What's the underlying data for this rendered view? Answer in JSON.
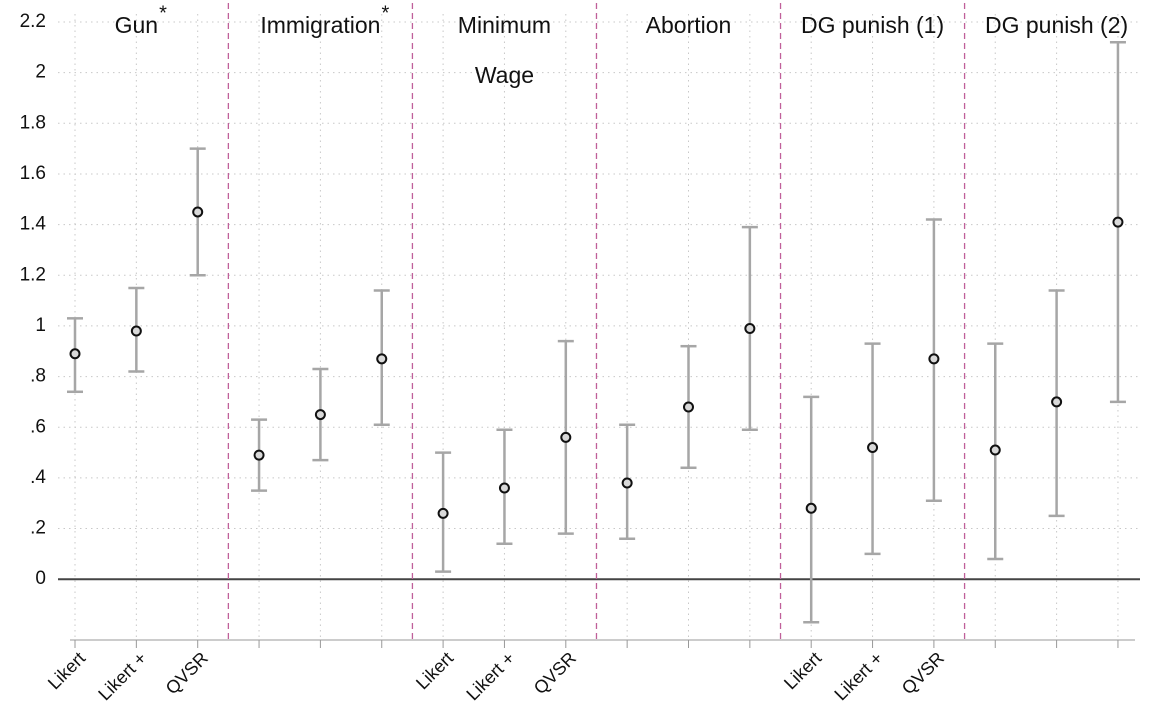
{
  "chart_data": {
    "type": "errorbar",
    "categories": [
      "Likert",
      "Likert +",
      "QVSR",
      null,
      null,
      null,
      "Likert",
      "Likert +",
      "QVSR",
      null,
      null,
      null,
      "Likert",
      "Likert +",
      "QVSR",
      null,
      null,
      null
    ],
    "groups": [
      {
        "label": [
          "Gun"
        ],
        "mark": "*"
      },
      {
        "label": [
          "Immigration"
        ],
        "mark": "*"
      },
      {
        "label": [
          "Minimum",
          "Wage"
        ]
      },
      {
        "label": [
          "Abortion"
        ]
      },
      {
        "label": [
          "DG punish (1)"
        ]
      },
      {
        "label": [
          "DG punish (2)"
        ]
      }
    ],
    "series": [
      {
        "color": "#a6a6a6",
        "values": [
          0.89,
          0.98,
          1.45,
          0.49,
          0.65,
          0.87,
          0.26,
          0.36,
          0.56,
          0.38,
          0.68,
          0.99,
          0.28,
          0.52,
          0.87,
          0.51,
          0.7,
          1.41
        ],
        "lower": [
          0.74,
          0.82,
          1.2,
          0.35,
          0.47,
          0.61,
          0.03,
          0.14,
          0.18,
          0.16,
          0.44,
          0.59,
          -0.17,
          0.1,
          0.31,
          0.08,
          0.25,
          0.7
        ],
        "upper": [
          1.03,
          1.15,
          1.7,
          0.63,
          0.83,
          1.14,
          0.5,
          0.59,
          0.94,
          0.61,
          0.92,
          1.39,
          0.72,
          0.93,
          1.42,
          0.93,
          1.14,
          2.12
        ]
      }
    ],
    "ylim": [
      -0.24,
      2.2
    ],
    "yticks": [
      0,
      {
        "value": 0.2,
        "label": ".2"
      },
      {
        "value": 0.4,
        "label": ".4"
      },
      {
        "value": 0.6,
        "label": ".6"
      },
      {
        "value": 0.8,
        "label": ".8"
      },
      1,
      1.2,
      1.4,
      1.6,
      1.8,
      2,
      2.2
    ],
    "hline": 0,
    "grid": true
  }
}
